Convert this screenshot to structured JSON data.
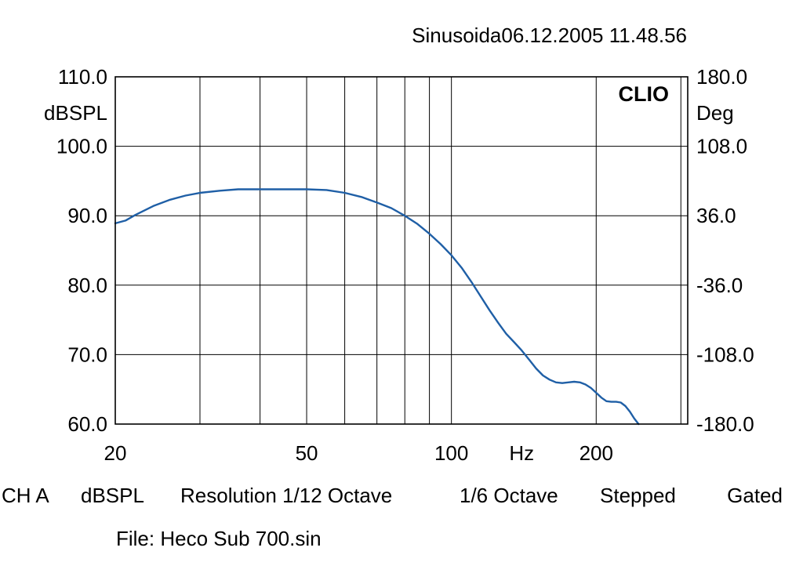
{
  "header": {
    "title": "Sinusoida06.12.2005 11.48.56"
  },
  "brand": "CLIO",
  "footer": {
    "channel": "CH A",
    "unit": "dBSPL",
    "resolution": "Resolution 1/12 Octave",
    "smoothing": "1/6 Octave",
    "mode": "Stepped",
    "gating": "Gated",
    "file": "File: Heco Sub 700.sin"
  },
  "chart_data": {
    "type": "line",
    "title": "Sinusoida06.12.2005 11.48.56",
    "xlabel": "Hz",
    "ylabel": "dBSPL",
    "y2label": "Deg",
    "xscale": "log",
    "xlim": [
      20,
      310
    ],
    "ylim": [
      60,
      110
    ],
    "y2lim": [
      -180,
      180
    ],
    "grid": true,
    "x_tick_labels": [
      {
        "value": 20,
        "label": "20"
      },
      {
        "value": 50,
        "label": "50"
      },
      {
        "value": 100,
        "label": "100"
      },
      {
        "value": 200,
        "label": "200"
      }
    ],
    "x_unit_label_position": 140,
    "x_grid": [
      30,
      40,
      50,
      60,
      70,
      80,
      90,
      100,
      200,
      300
    ],
    "y_ticks": [
      "60.0",
      "70.0",
      "80.0",
      "90.0",
      "100.0",
      "110.0"
    ],
    "y2_ticks": [
      "-180.0",
      "-108.0",
      "-36.0",
      "36.0",
      "108.0",
      "180.0"
    ],
    "line_color": "#1f5fa6",
    "series": [
      {
        "x": [
          20,
          21,
          22,
          24,
          26,
          28,
          30,
          33,
          36,
          40,
          45,
          50,
          55,
          60,
          65,
          70,
          75,
          80,
          85,
          90,
          95,
          100,
          105,
          110,
          115,
          120,
          125,
          130,
          135,
          140,
          145,
          150,
          155,
          160,
          165,
          170,
          175,
          180,
          185,
          190,
          195,
          200,
          205,
          210,
          215,
          220,
          225,
          230,
          235,
          240,
          245
        ],
        "y": [
          88.9,
          89.3,
          90.1,
          91.4,
          92.3,
          92.9,
          93.3,
          93.6,
          93.8,
          93.8,
          93.8,
          93.8,
          93.7,
          93.3,
          92.7,
          91.9,
          91.1,
          90.0,
          88.8,
          87.4,
          85.9,
          84.3,
          82.5,
          80.5,
          78.4,
          76.4,
          74.6,
          73.0,
          71.8,
          70.6,
          69.3,
          68.0,
          67.0,
          66.4,
          66.0,
          65.9,
          66.0,
          66.1,
          66.0,
          65.7,
          65.2,
          64.5,
          63.8,
          63.3,
          63.2,
          63.2,
          63.1,
          62.6,
          61.8,
          60.8,
          60.0
        ]
      }
    ]
  }
}
